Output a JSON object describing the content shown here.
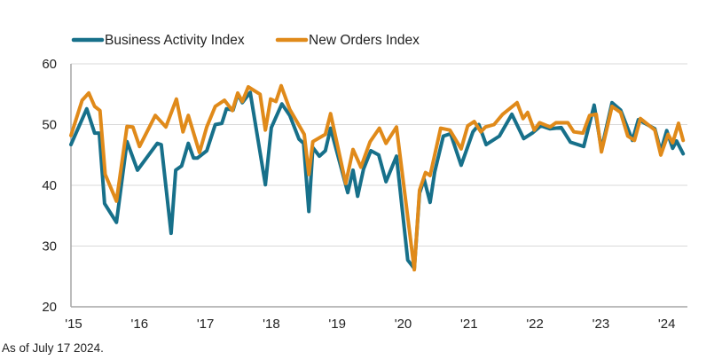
{
  "chart_data": {
    "type": "line",
    "title": "",
    "xlabel": "",
    "ylabel": "",
    "ylim": [
      20,
      60
    ],
    "yticks": [
      "60",
      "50",
      "40",
      "30",
      "20"
    ],
    "xlim": [
      2015,
      2024.4
    ],
    "xticks": [
      {
        "year": 2015,
        "label": "'15"
      },
      {
        "year": 2016,
        "label": "'16"
      },
      {
        "year": 2017,
        "label": "'17"
      },
      {
        "year": 2018,
        "label": "'18"
      },
      {
        "year": 2019,
        "label": "'19"
      },
      {
        "year": 2020,
        "label": "'20"
      },
      {
        "year": 2021,
        "label": "'21"
      },
      {
        "year": 2022,
        "label": "'22"
      },
      {
        "year": 2023,
        "label": "'23"
      },
      {
        "year": 2024,
        "label": "'24"
      }
    ],
    "grid": "horizontal",
    "legend": "top",
    "series": [
      {
        "name": "Business Activity Index",
        "color": "#17708a",
        "x": [
          2015.0,
          2015.24,
          2015.36,
          2015.43,
          2015.51,
          2015.69,
          2015.85,
          2016.01,
          2016.31,
          2016.37,
          2016.52,
          2016.59,
          2016.68,
          2016.78,
          2016.86,
          2016.92,
          2017.06,
          2017.19,
          2017.29,
          2017.36,
          2017.46,
          2017.53,
          2017.6,
          2017.72,
          2017.95,
          2018.04,
          2018.2,
          2018.32,
          2018.46,
          2018.53,
          2018.61,
          2018.67,
          2018.77,
          2018.86,
          2018.94,
          2019.2,
          2019.28,
          2019.35,
          2019.44,
          2019.55,
          2019.67,
          2019.78,
          2019.94,
          2020.11,
          2020.21,
          2020.29,
          2020.36,
          2020.45,
          2020.52,
          2020.65,
          2020.76,
          2020.92,
          2021.1,
          2021.19,
          2021.3,
          2021.5,
          2021.69,
          2021.87,
          2022.0,
          2022.13,
          2022.27,
          2022.44,
          2022.58,
          2022.78,
          2022.94,
          2023.05,
          2023.21,
          2023.34,
          2023.52,
          2023.61,
          2023.86,
          2023.95,
          2024.04,
          2024.13,
          2024.19,
          2024.29
        ],
        "y": [
          46.7,
          52.6,
          48.6,
          48.6,
          37.0,
          33.9,
          47.2,
          42.5,
          46.9,
          46.7,
          32.1,
          42.5,
          43.2,
          46.9,
          44.5,
          44.5,
          45.7,
          50.0,
          50.2,
          52.6,
          52.4,
          55.0,
          53.6,
          55.3,
          40.1,
          49.5,
          53.4,
          51.5,
          47.6,
          46.9,
          35.7,
          46.2,
          44.8,
          45.7,
          49.4,
          38.8,
          42.5,
          38.2,
          42.7,
          45.7,
          45.0,
          40.6,
          44.8,
          27.7,
          26.3,
          38.7,
          41.0,
          37.2,
          42.2,
          48.1,
          48.5,
          43.3,
          48.8,
          50.0,
          46.7,
          48.1,
          51.7,
          47.7,
          48.6,
          49.8,
          49.3,
          49.5,
          47.1,
          46.4,
          53.2,
          45.9,
          53.6,
          52.4,
          47.4,
          50.8,
          49.3,
          45.6,
          49.0,
          46.1,
          47.3,
          45.2
        ]
      },
      {
        "name": "New Orders Index",
        "color": "#e08a1a",
        "x": [
          2015.0,
          2015.17,
          2015.27,
          2015.36,
          2015.44,
          2015.52,
          2015.69,
          2015.85,
          2015.94,
          2016.04,
          2016.28,
          2016.44,
          2016.6,
          2016.7,
          2016.78,
          2016.95,
          2017.06,
          2017.19,
          2017.33,
          2017.45,
          2017.53,
          2017.6,
          2017.69,
          2017.87,
          2017.95,
          2018.03,
          2018.11,
          2018.19,
          2018.32,
          2018.54,
          2018.61,
          2018.67,
          2018.86,
          2018.94,
          2019.17,
          2019.28,
          2019.4,
          2019.54,
          2019.68,
          2019.78,
          2019.94,
          2020.21,
          2020.29,
          2020.38,
          2020.45,
          2020.61,
          2020.75,
          2020.92,
          2021.02,
          2021.12,
          2021.22,
          2021.29,
          2021.42,
          2021.55,
          2021.77,
          2021.86,
          2021.93,
          2022.03,
          2022.11,
          2022.27,
          2022.36,
          2022.54,
          2022.63,
          2022.77,
          2022.87,
          2022.97,
          2023.05,
          2023.21,
          2023.34,
          2023.45,
          2023.55,
          2023.64,
          2023.86,
          2023.95,
          2024.06,
          2024.13,
          2024.22,
          2024.29
        ],
        "y": [
          48.2,
          54.0,
          55.2,
          53.0,
          52.3,
          41.8,
          37.4,
          49.7,
          49.6,
          46.4,
          51.5,
          49.6,
          54.2,
          48.8,
          51.5,
          45.4,
          49.6,
          53.0,
          54.0,
          52.3,
          55.2,
          53.8,
          56.2,
          55.0,
          49.1,
          54.2,
          53.8,
          56.4,
          52.5,
          48.4,
          41.8,
          47.2,
          48.4,
          51.8,
          40.3,
          45.9,
          43.0,
          47.2,
          49.4,
          46.9,
          49.6,
          26.1,
          39.2,
          42.1,
          41.6,
          49.4,
          49.1,
          46.0,
          49.8,
          50.5,
          48.8,
          49.6,
          50.0,
          51.7,
          53.6,
          51.0,
          52.0,
          49.1,
          50.3,
          49.6,
          50.3,
          50.3,
          48.8,
          48.6,
          51.5,
          51.7,
          45.5,
          53.0,
          52.0,
          48.1,
          47.4,
          51.0,
          49.1,
          45.0,
          48.4,
          47.0,
          50.2,
          47.4
        ]
      }
    ]
  },
  "footnote": "As of July 17 2024."
}
